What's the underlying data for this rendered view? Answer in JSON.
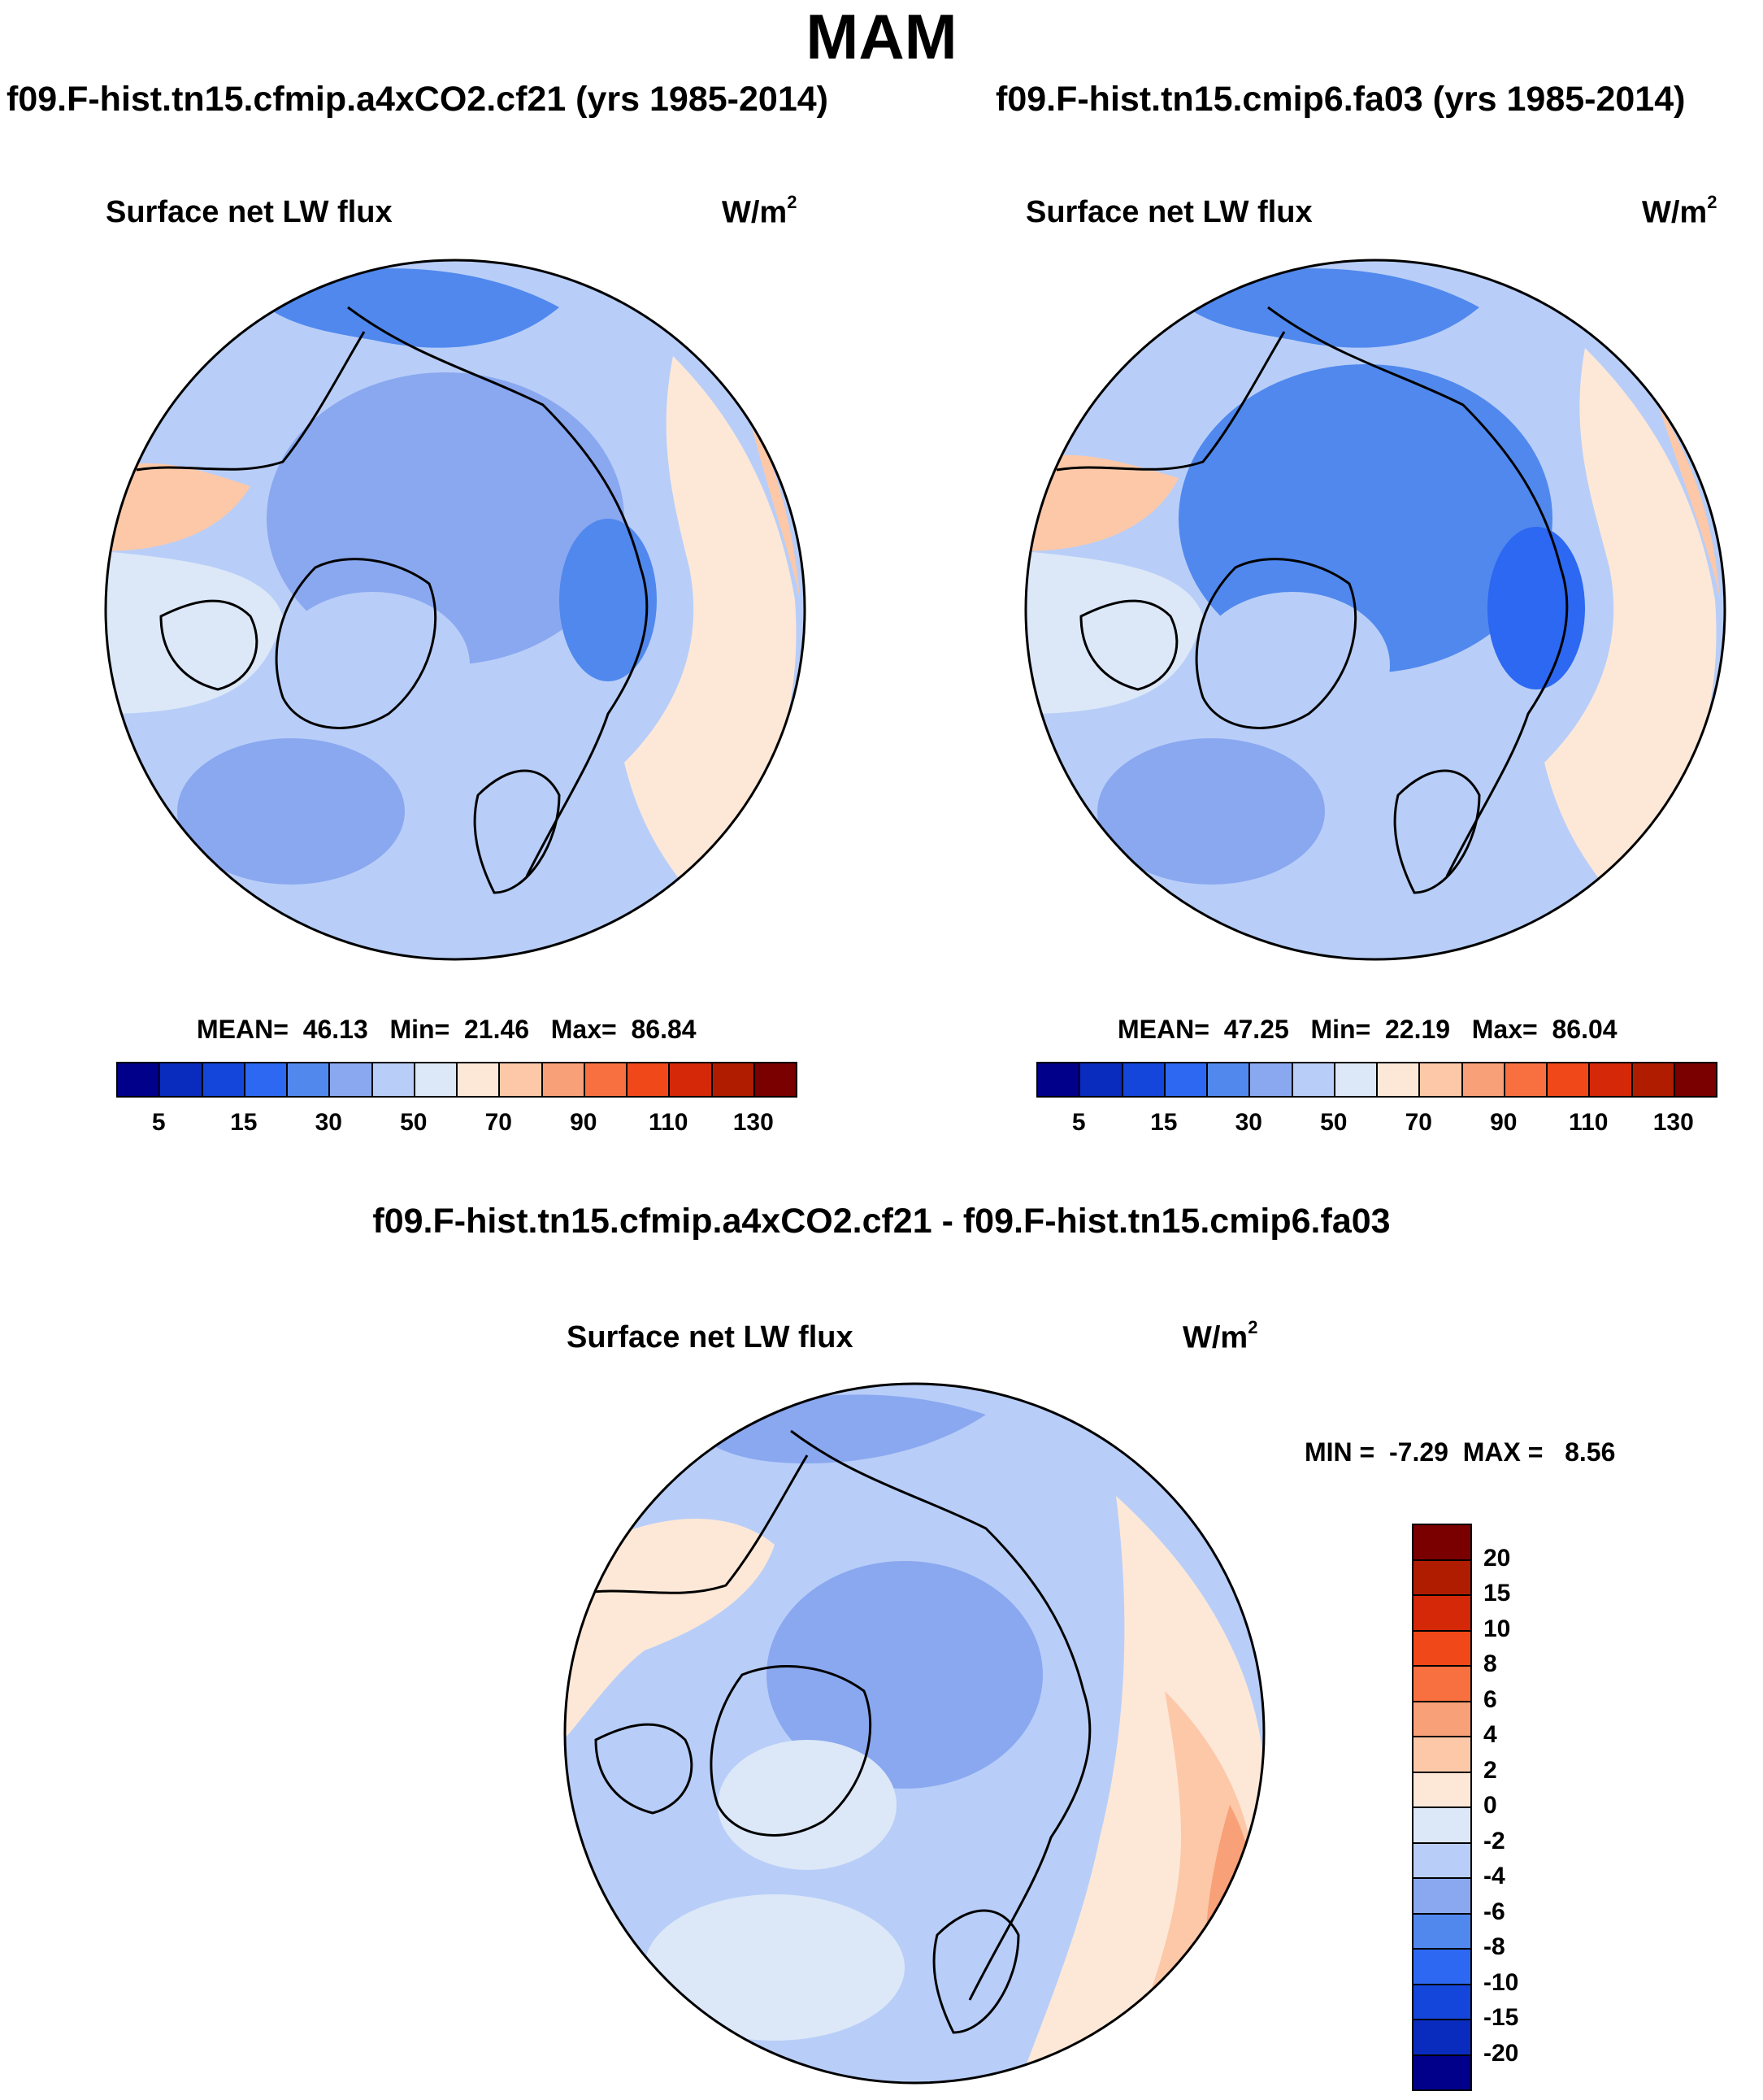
{
  "figure": {
    "title": "MAM",
    "diff_title": "f09.F-hist.tn15.cfmip.a4xCO2.cf21 - f09.F-hist.tn15.cmip6.fa03"
  },
  "panels": [
    {
      "run_title": "f09.F-hist.tn15.cfmip.a4xCO2.cf21 (yrs 1985-2014)",
      "variable": "Surface net LW flux",
      "units_base": "W/m",
      "units_exp": "2",
      "mean_label": "MEAN=",
      "mean": "46.13",
      "min_label": "Min=",
      "min": "21.46",
      "max_label": "Max=",
      "max": "86.84"
    },
    {
      "run_title": "f09.F-hist.tn15.cmip6.fa03 (yrs 1985-2014)",
      "variable": "Surface net LW flux",
      "units_base": "W/m",
      "units_exp": "2",
      "mean_label": "MEAN=",
      "mean": "47.25",
      "min_label": "Min=",
      "min": "22.19",
      "max_label": "Max=",
      "max": "86.04"
    }
  ],
  "diff_panel": {
    "variable": "Surface net LW flux",
    "units_base": "W/m",
    "units_exp": "2",
    "min_label": "MIN =",
    "min": "-7.29",
    "max_label": "MAX =",
    "max": "8.56"
  },
  "colorbars": {
    "absolute": {
      "colors": [
        "#00008b",
        "#0a2cbe",
        "#1446dc",
        "#2c68f2",
        "#5088ee",
        "#8aa8f0",
        "#b8cef8",
        "#dce8f8",
        "#fde8d8",
        "#fcc8a8",
        "#f8a078",
        "#f87040",
        "#f04818",
        "#d42808",
        "#b01c00",
        "#7a0000"
      ],
      "tick_labels": [
        "5",
        "15",
        "30",
        "50",
        "70",
        "90",
        "110",
        "130"
      ]
    },
    "difference": {
      "colors": [
        "#7a0000",
        "#b01c00",
        "#d42808",
        "#f04818",
        "#f87040",
        "#f8a078",
        "#fcc8a8",
        "#fde8d8",
        "#dce8f8",
        "#b8cef8",
        "#8aa8f0",
        "#5088ee",
        "#2c68f2",
        "#1446dc",
        "#0a2cbe",
        "#00008b"
      ],
      "tick_labels": [
        "20",
        "15",
        "10",
        "8",
        "6",
        "4",
        "2",
        "0",
        "-2",
        "-4",
        "-6",
        "-8",
        "-10",
        "-15",
        "-20"
      ]
    }
  }
}
